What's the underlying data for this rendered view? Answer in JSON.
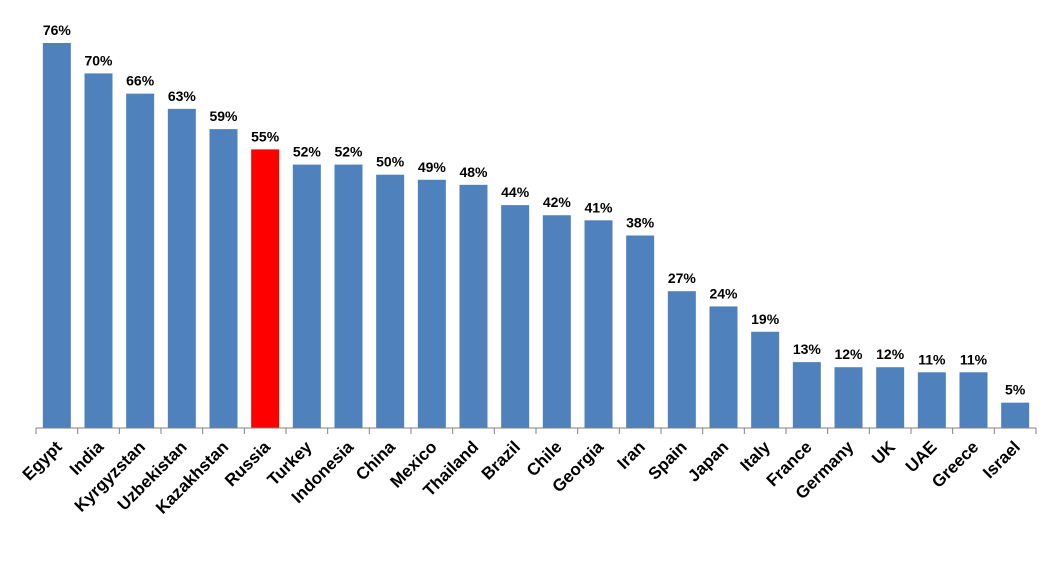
{
  "chart_data": {
    "type": "bar",
    "categories": [
      "Egypt",
      "India",
      "Kyrgyzstan",
      "Uzbekistan",
      "Kazakhstan",
      "Russia",
      "Turkey",
      "Indonesia",
      "China",
      "Mexico",
      "Thailand",
      "Brazil",
      "Chile",
      "Georgia",
      "Iran",
      "Spain",
      "Japan",
      "Italy",
      "France",
      "Germany",
      "UK",
      "UAE",
      "Greece",
      "Israel"
    ],
    "values": [
      76,
      70,
      66,
      63,
      59,
      55,
      52,
      52,
      50,
      49,
      48,
      44,
      42,
      41,
      38,
      27,
      24,
      19,
      13,
      12,
      12,
      11,
      11,
      5
    ],
    "data_labels": [
      "76%",
      "70%",
      "66%",
      "63%",
      "59%",
      "55%",
      "52%",
      "52%",
      "50%",
      "49%",
      "48%",
      "44%",
      "42%",
      "41%",
      "38%",
      "27%",
      "24%",
      "19%",
      "13%",
      "12%",
      "12%",
      "11%",
      "11%",
      "5%"
    ],
    "title": "",
    "xlabel": "",
    "ylabel": "",
    "ylim": [
      0,
      80
    ],
    "grid": false,
    "legend": "none",
    "colors": {
      "bar": "#4F81BD",
      "highlight": "#FF0000",
      "axis": "#808080"
    },
    "highlight_category": "Russia"
  }
}
